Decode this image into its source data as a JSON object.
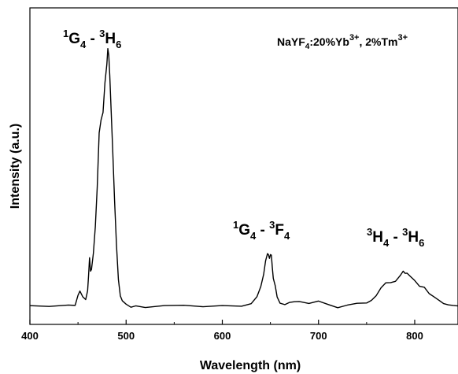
{
  "chart_data": {
    "type": "line",
    "xlabel": "Wavelength (nm)",
    "ylabel": "Intensity (a.u.)",
    "xlim": [
      400,
      845
    ],
    "ylim": [
      -0.07,
      1.13
    ],
    "x_ticks": [
      400,
      500,
      600,
      700,
      800
    ],
    "y_ticks_shown": false,
    "grid": false,
    "sample": {
      "base": "NaYF",
      "base_sub": "4",
      "dopants": ":20%Yb",
      "dopants_sup": "3+",
      "sep": ", 2%Tm",
      "sep_sup": "3+"
    },
    "annotations": [
      {
        "id": "blue",
        "up_sup": "1",
        "up_main": "G",
        "up_sub": "4",
        "sep": " - ",
        "lo_sup": "3",
        "lo_main": "H",
        "lo_sub": "6",
        "peak_nm": 481
      },
      {
        "id": "red",
        "up_sup": "1",
        "up_main": "G",
        "up_sub": "4",
        "sep": " - ",
        "lo_sup": "3",
        "lo_main": "F",
        "lo_sub": "4",
        "peak_nm": 650
      },
      {
        "id": "nir",
        "up_sup": "3",
        "up_main": "H",
        "up_sub": "4",
        "sep": " - ",
        "lo_sup": "3",
        "lo_main": "H",
        "lo_sub": "6",
        "peak_nm": 790
      }
    ],
    "series": [
      {
        "color": "#000000",
        "x": [
          400,
          420,
          440,
          447,
          450,
          452,
          455,
          458,
          460,
          461,
          462,
          463,
          464,
          466,
          468,
          470,
          472,
          474,
          476,
          478,
          480,
          481,
          482,
          483,
          484,
          486,
          488,
          490,
          492,
          494,
          496,
          500,
          505,
          510,
          520,
          540,
          560,
          580,
          600,
          620,
          630,
          636,
          640,
          643,
          645,
          647,
          648,
          649,
          650,
          651,
          652,
          653,
          655,
          657,
          660,
          665,
          670,
          675,
          680,
          690,
          700,
          710,
          720,
          730,
          740,
          750,
          755,
          760,
          765,
          770,
          775,
          780,
          785,
          788,
          790,
          792,
          795,
          800,
          805,
          810,
          815,
          820,
          825,
          830,
          835,
          840,
          845
        ],
        "y": [
          0.0,
          0.0,
          0.0,
          0.005,
          0.045,
          0.05,
          0.03,
          0.025,
          0.06,
          0.12,
          0.18,
          0.13,
          0.14,
          0.2,
          0.3,
          0.45,
          0.66,
          0.7,
          0.74,
          0.84,
          0.92,
          0.97,
          0.95,
          0.88,
          0.78,
          0.6,
          0.4,
          0.23,
          0.1,
          0.04,
          0.015,
          0.0,
          0.0,
          0.0,
          0.0,
          0.0,
          0.0,
          0.0,
          0.0,
          0.0,
          0.005,
          0.03,
          0.07,
          0.12,
          0.17,
          0.2,
          0.19,
          0.18,
          0.2,
          0.19,
          0.14,
          0.11,
          0.07,
          0.04,
          0.015,
          0.005,
          0.01,
          0.02,
          0.015,
          0.01,
          0.015,
          0.005,
          0.0,
          0.005,
          0.005,
          0.01,
          0.02,
          0.04,
          0.07,
          0.085,
          0.09,
          0.095,
          0.11,
          0.125,
          0.13,
          0.12,
          0.11,
          0.095,
          0.08,
          0.065,
          0.05,
          0.035,
          0.02,
          0.01,
          0.005,
          0.0,
          0.0
        ]
      }
    ]
  }
}
